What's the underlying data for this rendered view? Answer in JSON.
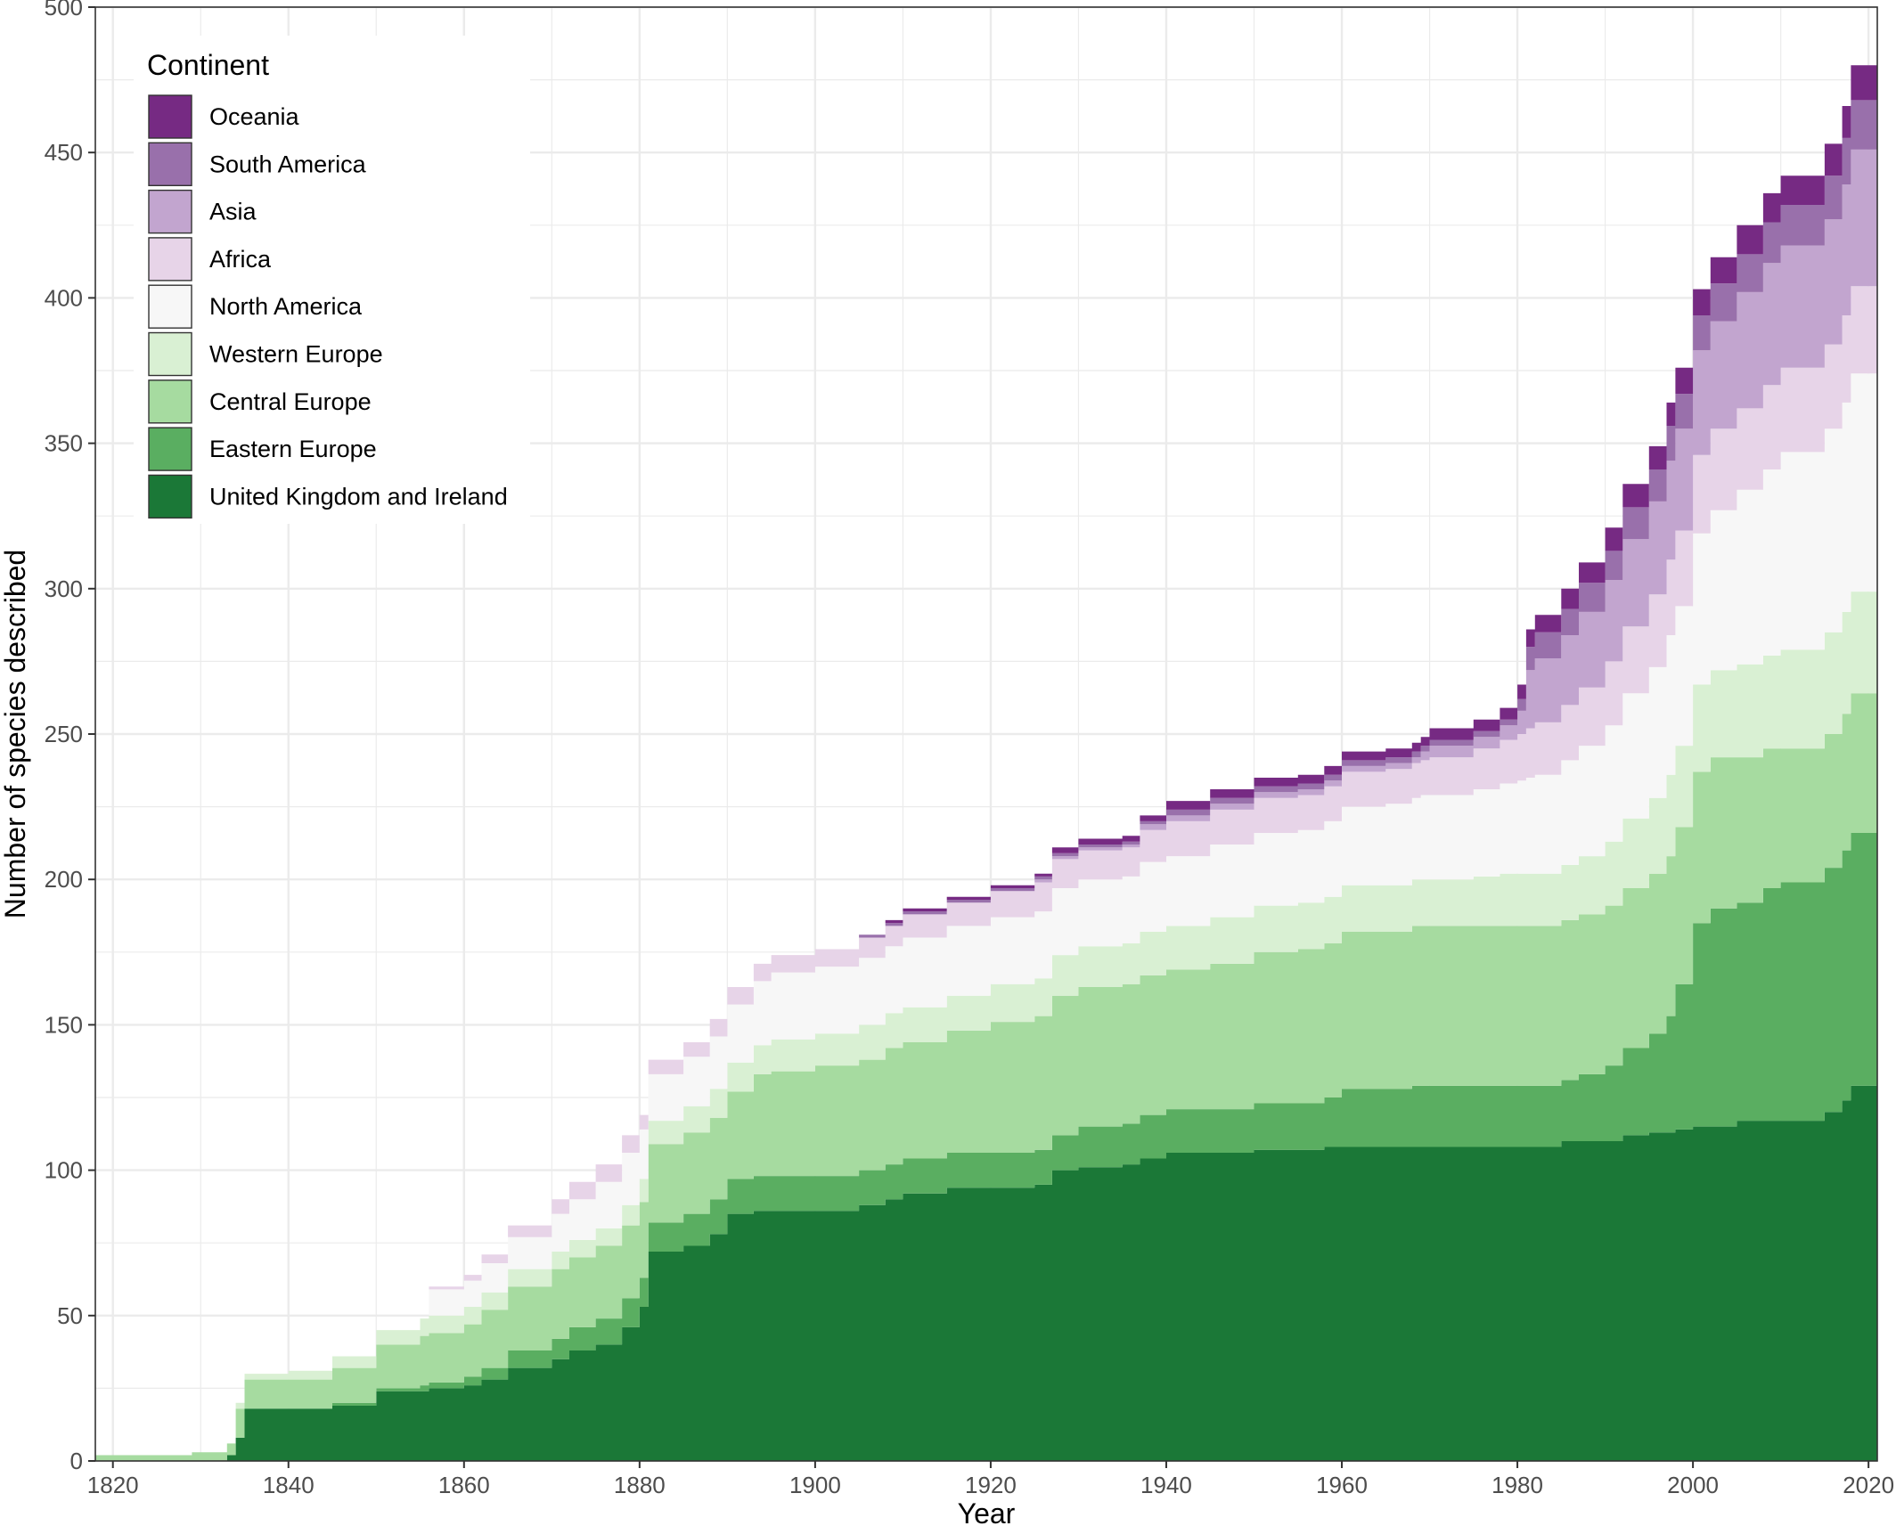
{
  "chart_data": {
    "type": "area",
    "stacked": true,
    "xlabel": "Year",
    "ylabel": "Number of species described",
    "xlim": [
      1818,
      2021
    ],
    "ylim": [
      0,
      500
    ],
    "x_ticks": [
      1820,
      1840,
      1860,
      1880,
      1900,
      1920,
      1940,
      1960,
      1980,
      2000,
      2020
    ],
    "y_ticks": [
      0,
      50,
      100,
      150,
      200,
      250,
      300,
      350,
      400,
      450,
      500
    ],
    "grid": true,
    "legend": {
      "title": "Continent",
      "placement": "top-left"
    },
    "x": [
      1818,
      1828,
      1829,
      1832,
      1833,
      1834,
      1835,
      1840,
      1845,
      1850,
      1855,
      1856,
      1860,
      1862,
      1865,
      1870,
      1872,
      1875,
      1878,
      1880,
      1881,
      1885,
      1888,
      1890,
      1893,
      1895,
      1900,
      1905,
      1908,
      1910,
      1915,
      1920,
      1925,
      1927,
      1930,
      1935,
      1937,
      1940,
      1945,
      1950,
      1955,
      1958,
      1960,
      1965,
      1968,
      1969,
      1970,
      1975,
      1978,
      1980,
      1981,
      1982,
      1985,
      1987,
      1990,
      1992,
      1995,
      1997,
      1998,
      2000,
      2002,
      2005,
      2008,
      2010,
      2015,
      2017,
      2018,
      2021
    ],
    "series": [
      {
        "name": "United Kingdom and Ireland",
        "color": "#1b7837",
        "values": [
          0,
          0,
          0,
          0,
          2,
          8,
          18,
          18,
          19,
          24,
          24,
          25,
          26,
          28,
          32,
          35,
          38,
          40,
          46,
          53,
          72,
          74,
          78,
          85,
          86,
          86,
          86,
          88,
          90,
          92,
          94,
          94,
          95,
          100,
          101,
          102,
          104,
          106,
          106,
          107,
          107,
          108,
          108,
          108,
          108,
          108,
          108,
          108,
          108,
          108,
          108,
          108,
          110,
          110,
          110,
          112,
          113,
          113,
          114,
          115,
          115,
          117,
          117,
          117,
          120,
          124,
          129,
          130
        ]
      },
      {
        "name": "Eastern Europe",
        "color": "#5aae61",
        "values": [
          0,
          0,
          0,
          0,
          0,
          0,
          0,
          0,
          1,
          1,
          2,
          2,
          3,
          4,
          6,
          7,
          8,
          9,
          10,
          10,
          10,
          11,
          12,
          12,
          12,
          12,
          12,
          12,
          12,
          12,
          12,
          12,
          12,
          12,
          14,
          14,
          15,
          15,
          15,
          16,
          16,
          17,
          20,
          20,
          21,
          21,
          21,
          21,
          21,
          21,
          21,
          21,
          21,
          23,
          26,
          30,
          34,
          40,
          50,
          70,
          75,
          75,
          80,
          82,
          84,
          86,
          87,
          90
        ]
      },
      {
        "name": "Central Europe",
        "color": "#a6dba0",
        "values": [
          2,
          2,
          3,
          3,
          4,
          10,
          10,
          10,
          12,
          15,
          17,
          17,
          18,
          20,
          22,
          24,
          24,
          25,
          25,
          26,
          27,
          28,
          28,
          30,
          35,
          36,
          38,
          38,
          40,
          40,
          42,
          45,
          46,
          48,
          48,
          48,
          48,
          48,
          50,
          52,
          53,
          53,
          54,
          54,
          55,
          55,
          55,
          55,
          55,
          55,
          55,
          55,
          55,
          55,
          55,
          55,
          55,
          55,
          54,
          52,
          52,
          50,
          48,
          46,
          46,
          47,
          48,
          52
        ]
      },
      {
        "name": "Western Europe",
        "color": "#d9f0d3",
        "values": [
          0,
          0,
          0,
          0,
          0,
          2,
          2,
          3,
          4,
          5,
          6,
          6,
          6,
          6,
          6,
          6,
          6,
          6,
          7,
          8,
          8,
          9,
          10,
          10,
          10,
          11,
          11,
          12,
          12,
          12,
          12,
          13,
          13,
          14,
          14,
          14,
          15,
          15,
          16,
          16,
          16,
          16,
          16,
          16,
          16,
          16,
          16,
          17,
          18,
          18,
          18,
          18,
          19,
          20,
          22,
          24,
          26,
          28,
          28,
          30,
          30,
          32,
          32,
          34,
          35,
          35,
          35,
          36
        ]
      },
      {
        "name": "North America",
        "color": "#f7f7f7",
        "values": [
          0,
          0,
          0,
          0,
          0,
          0,
          0,
          0,
          0,
          0,
          0,
          9,
          9,
          10,
          11,
          13,
          14,
          16,
          18,
          17,
          16,
          17,
          18,
          20,
          22,
          23,
          23,
          23,
          23,
          24,
          24,
          23,
          23,
          23,
          23,
          23,
          24,
          24,
          25,
          25,
          25,
          26,
          27,
          28,
          28,
          29,
          29,
          30,
          31,
          32,
          33,
          34,
          36,
          38,
          40,
          43,
          45,
          48,
          48,
          52,
          55,
          60,
          64,
          68,
          70,
          72,
          75,
          80
        ]
      },
      {
        "name": "Africa",
        "color": "#e7d4e8",
        "values": [
          0,
          0,
          0,
          0,
          0,
          0,
          0,
          0,
          0,
          0,
          0,
          1,
          2,
          3,
          4,
          5,
          6,
          6,
          6,
          5,
          5,
          5,
          6,
          6,
          6,
          6,
          6,
          7,
          7,
          8,
          8,
          9,
          10,
          10,
          10,
          10,
          11,
          12,
          12,
          12,
          12,
          12,
          12,
          12,
          12,
          12,
          13,
          14,
          15,
          16,
          17,
          18,
          19,
          20,
          22,
          23,
          25,
          26,
          26,
          27,
          28,
          28,
          29,
          29,
          29,
          30,
          30,
          31
        ]
      },
      {
        "name": "Asia",
        "color": "#c2a5cf",
        "values": [
          0,
          0,
          0,
          0,
          0,
          0,
          0,
          0,
          0,
          0,
          0,
          0,
          0,
          0,
          0,
          0,
          0,
          0,
          0,
          0,
          0,
          0,
          0,
          0,
          0,
          0,
          0,
          0,
          0,
          0,
          0,
          0,
          1,
          1,
          1,
          1,
          2,
          2,
          2,
          2,
          2,
          2,
          2,
          2,
          2,
          3,
          4,
          4,
          5,
          8,
          20,
          22,
          24,
          26,
          28,
          30,
          32,
          34,
          35,
          36,
          37,
          40,
          42,
          42,
          43,
          45,
          47,
          47
        ]
      },
      {
        "name": "South America",
        "color": "#9970ab",
        "values": [
          0,
          0,
          0,
          0,
          0,
          0,
          0,
          0,
          0,
          0,
          0,
          0,
          0,
          0,
          0,
          0,
          0,
          0,
          0,
          0,
          0,
          0,
          0,
          0,
          0,
          0,
          0,
          1,
          1,
          1,
          1,
          1,
          1,
          1,
          1,
          1,
          1,
          2,
          2,
          2,
          2,
          2,
          2,
          2,
          2,
          2,
          2,
          2,
          2,
          4,
          8,
          9,
          9,
          10,
          10,
          11,
          11,
          12,
          12,
          12,
          13,
          13,
          14,
          14,
          15,
          16,
          17,
          18
        ]
      },
      {
        "name": "Oceania",
        "color": "#762a83",
        "values": [
          0,
          0,
          0,
          0,
          0,
          0,
          0,
          0,
          0,
          0,
          0,
          0,
          0,
          0,
          0,
          0,
          0,
          0,
          0,
          0,
          0,
          0,
          0,
          0,
          0,
          0,
          0,
          0,
          1,
          1,
          1,
          1,
          1,
          2,
          2,
          2,
          2,
          3,
          3,
          3,
          3,
          3,
          3,
          3,
          3,
          3,
          4,
          4,
          4,
          5,
          6,
          6,
          7,
          7,
          8,
          8,
          8,
          8,
          9,
          9,
          9,
          10,
          10,
          10,
          11,
          11,
          12,
          13
        ]
      }
    ]
  }
}
